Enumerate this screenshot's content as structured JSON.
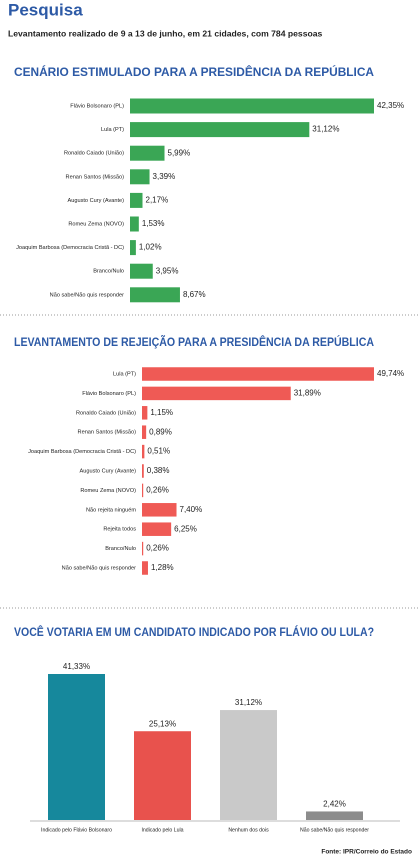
{
  "header": {
    "title": "Pesquisa",
    "subtitle": "Levantamento realizado de 9 a 13 de junho, em 21 cidades, com 784 pessoas"
  },
  "chart_data": [
    {
      "type": "bar",
      "orientation": "horizontal",
      "title": "CENÁRIO ESTIMULADO PARA A PRESIDÊNCIA DA REPÚBLICA",
      "color": "#3aa655",
      "categories": [
        "Flávio Bolsonaro (PL)",
        "Lula (PT)",
        "Ronaldo Caiado (União)",
        "Renan Santos (Missão)",
        "Augusto Cury (Avante)",
        "Romeu Zema (NOVO)",
        "Joaquim Barbosa (Democracia Cristã - DC)",
        "Branco/Nulo",
        "Não sabe/Não quis responder"
      ],
      "values": [
        42.35,
        31.12,
        5.99,
        3.39,
        2.17,
        1.53,
        1.02,
        3.95,
        8.67
      ],
      "value_labels": [
        "42,35%",
        "31,12%",
        "5,99%",
        "3,39%",
        "2,17%",
        "1,53%",
        "1,02%",
        "3,95%",
        "8,67%"
      ]
    },
    {
      "type": "bar",
      "orientation": "horizontal",
      "title": "LEVANTAMENTO DE REJEIÇÃO PARA A PRESIDÊNCIA DA REPÚBLICA",
      "color": "#ef5a55",
      "categories": [
        "Lula (PT)",
        "Flávio Bolsonaro (PL)",
        "Ronaldo Caiado (União)",
        "Renan Santos (Missão)",
        "Joaquim Barbosa (Democracia Cristã - DC)",
        "Augusto Cury (Avante)",
        "Romeu Zema (NOVO)",
        "Não rejeita ninguém",
        "Rejeita todos",
        "Branco/Nulo",
        "Não sabe/Não quis responder"
      ],
      "values": [
        49.74,
        31.89,
        1.15,
        0.89,
        0.51,
        0.38,
        0.26,
        7.4,
        6.25,
        0.26,
        1.28
      ],
      "value_labels": [
        "49,74%",
        "31,89%",
        "1,15%",
        "0,89%",
        "0,51%",
        "0,38%",
        "0,26%",
        "7,40%",
        "6,25%",
        "0,26%",
        "1,28%"
      ]
    },
    {
      "type": "bar",
      "orientation": "vertical",
      "title": "VOCÊ VOTARIA EM UM CANDIDATO INDICADO POR FLÁVIO OU LULA?",
      "categories": [
        "Indicado pelo Flávio Bolsonaro",
        "Indicado pelo Lula",
        "Nenhum dos dois",
        "Não sabe/Não quis responder"
      ],
      "values": [
        41.33,
        25.13,
        31.12,
        2.42
      ],
      "value_labels": [
        "41,33%",
        "25,13%",
        "31,12%",
        "2,42%"
      ],
      "colors": [
        "#16889c",
        "#e8524d",
        "#c9c9c9",
        "#8c8c8c"
      ]
    }
  ],
  "footer": {
    "source": "Fonte: IPR/Correio do Estado"
  }
}
